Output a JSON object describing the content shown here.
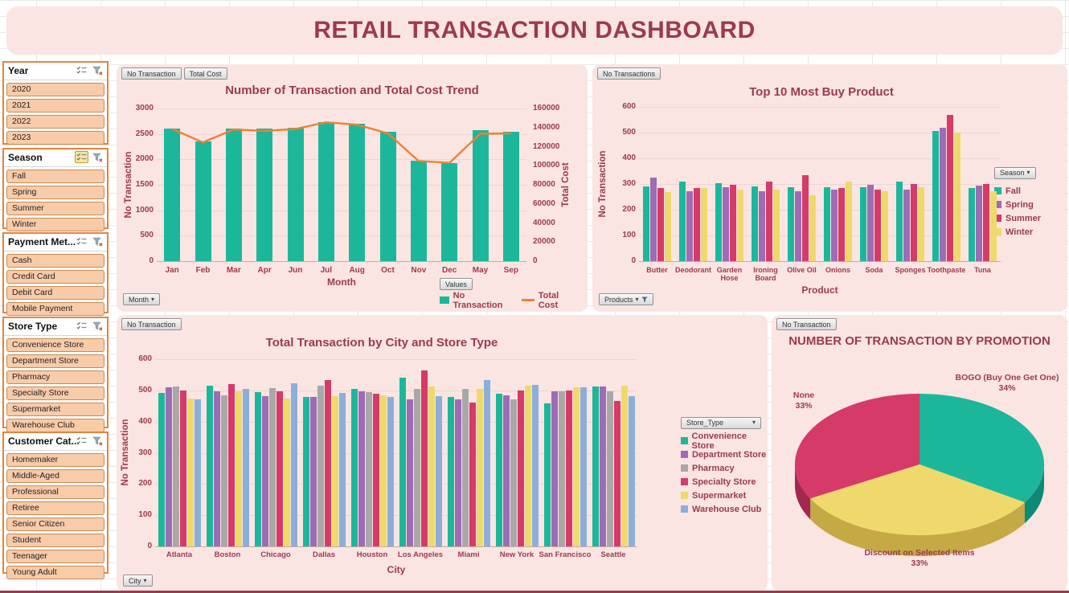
{
  "title": "RETAIL TRANSACTION DASHBOARD",
  "colors": {
    "maroon_text": "#9C3A4C",
    "panel_pink": "#FAE5E3",
    "slicer_orange_border": "#E8823C",
    "slicer_item_fill": "#F8CBA9",
    "teal": "#1CB79B",
    "purple": "#9E6BB5",
    "crimson": "#D53A69",
    "yellow": "#EFD96C",
    "gray": "#A8A8A8",
    "blue": "#8BAFDA",
    "orange_line": "#EE8033"
  },
  "slicers": [
    {
      "name": "Year",
      "multiselect_active": false,
      "items": [
        "2020",
        "2021",
        "2022",
        "2023"
      ]
    },
    {
      "name": "Season",
      "multiselect_active": true,
      "items": [
        "Fall",
        "Spring",
        "Summer",
        "Winter"
      ]
    },
    {
      "name": "Payment Met...",
      "multiselect_active": false,
      "items": [
        "Cash",
        "Credit Card",
        "Debit Card",
        "Mobile Payment"
      ]
    },
    {
      "name": "Store Type",
      "multiselect_active": false,
      "items": [
        "Convenience Store",
        "Department Store",
        "Pharmacy",
        "Specialty Store",
        "Supermarket",
        "Warehouse Club"
      ]
    },
    {
      "name": "Customer Cat...",
      "multiselect_active": false,
      "items": [
        "Homemaker",
        "Middle-Aged",
        "Professional",
        "Retiree",
        "Senior Citizen",
        "Student",
        "Teenager",
        "Young Adult"
      ]
    }
  ],
  "chart_data": [
    {
      "type": "combo-bar-line",
      "title": "Number of Transaction and Total Cost Trend",
      "field_buttons": [
        "No Transaction",
        "Total Cost"
      ],
      "axis_field_button": "Month",
      "values_button": "Values",
      "xlabel": "Month",
      "ylabel_left": "No Transaction",
      "ylabel_right": "Total Cost",
      "ylim_left": [
        0,
        3000
      ],
      "ytick_left": 500,
      "ylim_right": [
        0,
        160000
      ],
      "ytick_right": 20000,
      "categories": [
        "Jan",
        "Feb",
        "Mar",
        "Apr",
        "Jun",
        "Jul",
        "Aug",
        "Oct",
        "Nov",
        "Dec",
        "May",
        "Sep"
      ],
      "series": [
        {
          "name": "No Transaction",
          "kind": "bar",
          "axis": "left",
          "color": "#1CB79B",
          "values": [
            2610,
            2350,
            2600,
            2600,
            2620,
            2730,
            2700,
            2550,
            1980,
            1930,
            2580,
            2550
          ]
        },
        {
          "name": "Total Cost",
          "kind": "line",
          "axis": "right",
          "color": "#EE8033",
          "values": [
            138500,
            124500,
            138000,
            136500,
            138500,
            145500,
            143000,
            134000,
            105000,
            103000,
            133500,
            134000
          ]
        }
      ]
    },
    {
      "type": "bar",
      "title": "Top 10 Most Buy Product",
      "field_buttons": [
        "No Transactions"
      ],
      "axis_field_button": "Products",
      "legend_field_button": "Season",
      "xlabel": "Product",
      "ylabel": "No Transaction",
      "ylim": [
        0,
        600
      ],
      "ytick": 100,
      "categories": [
        "Butter",
        "Deodorant",
        "Garden Hose",
        "Ironing Board",
        "Olive Oil",
        "Onions",
        "Soda",
        "Sponges",
        "Toothpaste",
        "Tuna"
      ],
      "series": [
        {
          "name": "Fall",
          "color": "#1CB79B",
          "values": [
            290,
            310,
            302,
            292,
            288,
            288,
            287,
            308,
            505,
            283
          ]
        },
        {
          "name": "Spring",
          "color": "#9E6BB5",
          "values": [
            325,
            272,
            287,
            272,
            272,
            277,
            297,
            277,
            520,
            295
          ]
        },
        {
          "name": "Summer",
          "color": "#D53A69",
          "values": [
            283,
            285,
            297,
            310,
            335,
            284,
            278,
            300,
            570,
            300
          ]
        },
        {
          "name": "Winter",
          "color": "#EFD96C",
          "values": [
            268,
            283,
            278,
            277,
            255,
            310,
            272,
            288,
            500,
            272
          ]
        }
      ]
    },
    {
      "type": "bar",
      "title": "Total Transaction by City and Store Type",
      "field_buttons": [
        "No Transaction"
      ],
      "axis_field_button": "City",
      "legend_field_button": "Store_Type",
      "xlabel": "City",
      "ylabel": "No Transaction",
      "ylim": [
        0,
        600
      ],
      "ytick": 100,
      "categories": [
        "Atlanta",
        "Boston",
        "Chicago",
        "Dallas",
        "Houston",
        "Los Angeles",
        "Miami",
        "New York",
        "San Francisco",
        "Seattle"
      ],
      "series": [
        {
          "name": "Convenience Store",
          "color": "#1CB79B",
          "values": [
            492,
            515,
            494,
            480,
            505,
            542,
            478,
            490,
            459,
            512
          ]
        },
        {
          "name": "Department Store",
          "color": "#9E6BB5",
          "values": [
            509,
            497,
            482,
            480,
            498,
            470,
            472,
            483,
            497,
            512
          ]
        },
        {
          "name": "Pharmacy",
          "color": "#A8A8A8",
          "values": [
            512,
            483,
            507,
            514,
            495,
            505,
            506,
            470,
            497,
            497
          ]
        },
        {
          "name": "Specialty Store",
          "color": "#D53A69",
          "values": [
            500,
            519,
            497,
            532,
            490,
            565,
            461,
            500,
            500,
            467
          ]
        },
        {
          "name": "Supermarket",
          "color": "#EFD96C",
          "values": [
            474,
            496,
            475,
            482,
            483,
            512,
            504,
            515,
            510,
            515
          ]
        },
        {
          "name": "Warehouse Club",
          "color": "#8BAFDA",
          "values": [
            471,
            505,
            524,
            492,
            480,
            481,
            532,
            518,
            511,
            481
          ]
        }
      ]
    },
    {
      "type": "pie",
      "title": "NUMBER OF TRANSACTION BY PROMOTION",
      "field_buttons": [
        "No Transaction"
      ],
      "labels": [
        "BOGO (Buy One Get One)",
        "None",
        "Discount on Selected Items"
      ],
      "values": [
        34,
        33,
        33
      ],
      "unit": "%",
      "colors": [
        "#1CB79B",
        "#D53A69",
        "#EFD96C"
      ],
      "side_colors": [
        "#0D8A75",
        "#A32750",
        "#C4A945"
      ]
    }
  ]
}
